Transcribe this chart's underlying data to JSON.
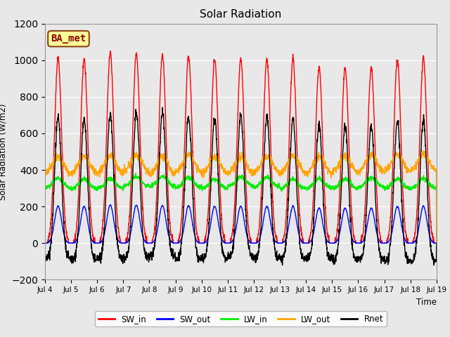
{
  "title": "Solar Radiation",
  "ylabel": "Solar Radiation (W/m2)",
  "xlabel": "Time",
  "ylim": [
    -200,
    1200
  ],
  "yticks": [
    -200,
    0,
    200,
    400,
    600,
    800,
    1000,
    1200
  ],
  "n_days": 15,
  "points_per_day": 144,
  "start_day": 4,
  "colors": {
    "SW_in": "#ff0000",
    "SW_out": "#0000ff",
    "LW_in": "#00ee00",
    "LW_out": "#ffa500",
    "Rnet": "#000000"
  },
  "linewidth": 1.0,
  "legend_labels": [
    "SW_in",
    "SW_out",
    "LW_in",
    "LW_out",
    "Rnet"
  ],
  "background_color": "#e8e8e8",
  "axes_background": "#e8e8e8",
  "grid_color": "#ffffff",
  "annotation_box_color": "#ffff99",
  "annotation_box_edge": "#8B4513",
  "annotation_text": "BA_met",
  "annotation_fontsize": 10
}
